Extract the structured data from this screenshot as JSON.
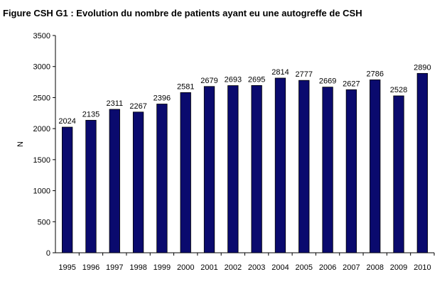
{
  "chart_data": {
    "type": "bar",
    "title": "Figure CSH G1 : Evolution du nombre de patients ayant eu une autogreffe de CSH",
    "xlabel": "",
    "ylabel": "N",
    "ylim": [
      0,
      3500
    ],
    "yticks": [
      0,
      500,
      1000,
      1500,
      2000,
      2500,
      3000,
      3500
    ],
    "grid": false,
    "legend": "none",
    "bar_color": "#0a0a6e",
    "categories": [
      "1995",
      "1996",
      "1997",
      "1998",
      "1999",
      "2000",
      "2001",
      "2002",
      "2003",
      "2004",
      "2005",
      "2006",
      "2007",
      "2008",
      "2009",
      "2010"
    ],
    "values": [
      2024,
      2135,
      2311,
      2267,
      2396,
      2581,
      2679,
      2693,
      2695,
      2814,
      2777,
      2669,
      2627,
      2786,
      2528,
      2890
    ]
  }
}
